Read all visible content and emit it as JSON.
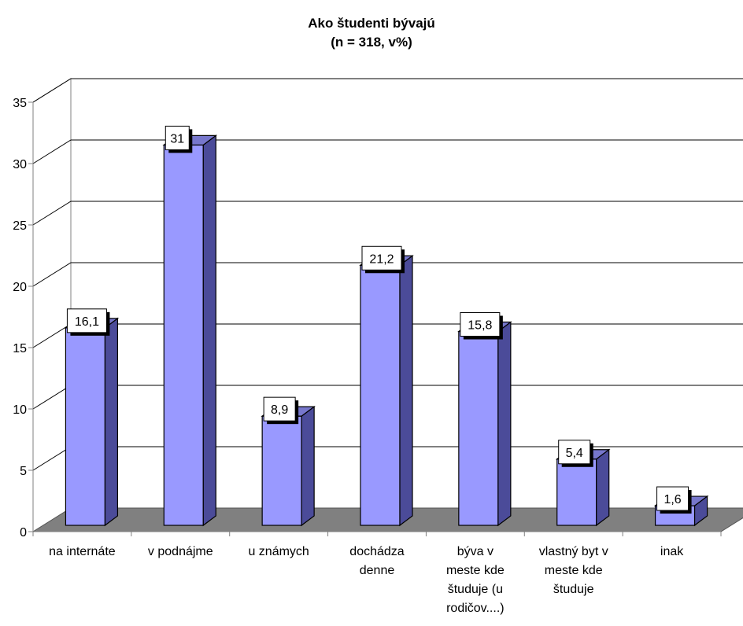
{
  "chart_data": {
    "type": "bar",
    "title_lines": [
      "Ako študenti bývajú",
      "(n = 318, v%)"
    ],
    "categories": [
      [
        "na internáte"
      ],
      [
        "v podnájme"
      ],
      [
        "u známych"
      ],
      [
        "dochádza",
        "denne"
      ],
      [
        "býva v",
        "meste kde",
        "študuje (u",
        "rodičov....)"
      ],
      [
        "vlastný byt v",
        "meste kde",
        "študuje"
      ],
      [
        "inak"
      ]
    ],
    "values": [
      16.1,
      31,
      8.9,
      21.2,
      15.8,
      5.4,
      1.6
    ],
    "value_labels": [
      "16,1",
      "31",
      "8,9",
      "21,2",
      "15,8",
      "5,4",
      "1,6"
    ],
    "ylim": [
      0,
      35
    ],
    "yticks": [
      "0",
      "5",
      "10",
      "15",
      "20",
      "25",
      "30",
      "35"
    ],
    "grid": true,
    "legend": "none",
    "style": "3d-column",
    "colors": {
      "bar_front": "#9999ff",
      "bar_side": "#4b4b99",
      "bar_top": "#7777cc",
      "floor": "#808080",
      "wall": "#ffffff"
    }
  }
}
